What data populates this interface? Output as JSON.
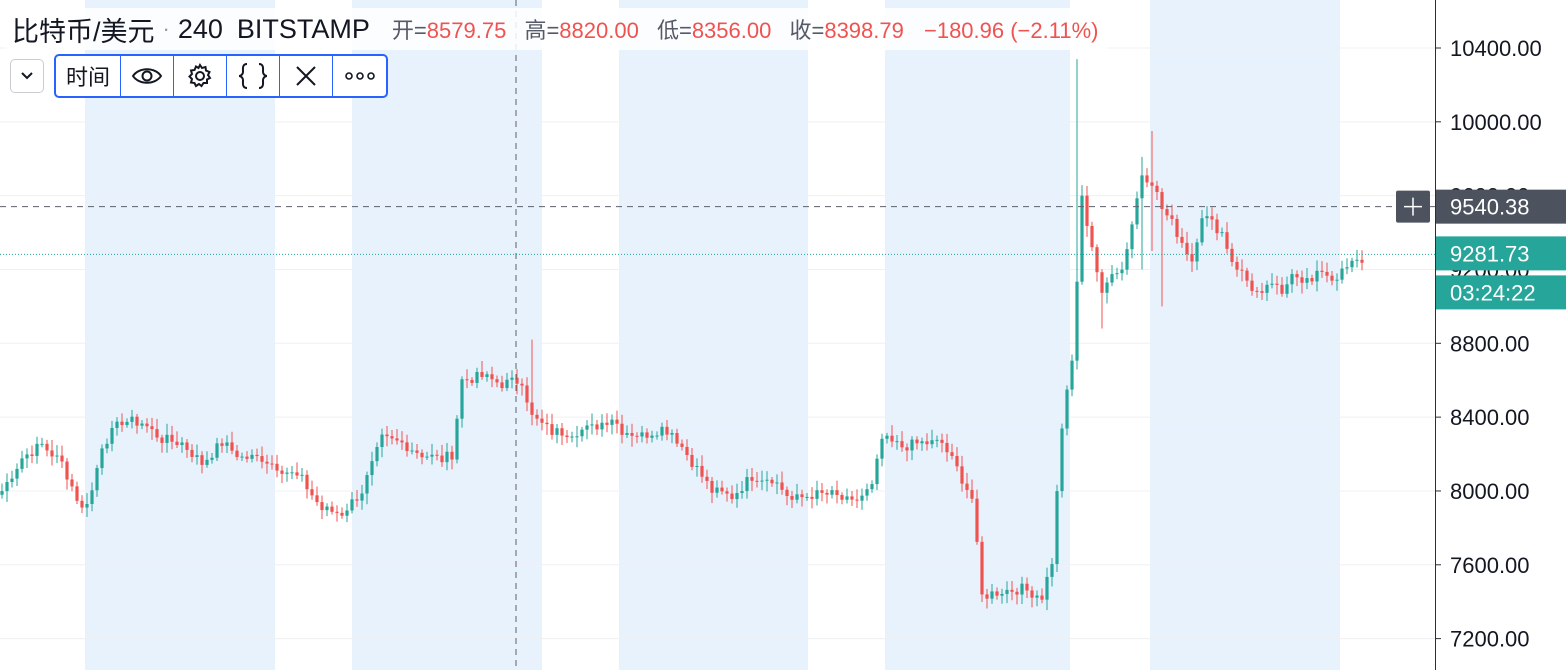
{
  "header": {
    "symbol": "比特币/美元",
    "interval": "240",
    "exchange": "BITSTAMP",
    "open_label": "开=",
    "open_value": "8579.75",
    "high_label": "高=",
    "high_value": "8820.00",
    "low_label": "低=",
    "low_value": "8356.00",
    "close_label": "收=",
    "close_value": "8398.79",
    "change": "−180.96 (−2.11%)"
  },
  "toolbar": {
    "time_label": "时间",
    "icons": [
      "chevron-down-icon",
      "eye-icon",
      "gear-icon",
      "braces-icon",
      "close-icon",
      "more-icon"
    ]
  },
  "price_axis": {
    "crosshair_price": "9540.38",
    "last_price": "9281.73",
    "countdown": "03:24:22"
  },
  "colors": {
    "up": "#26a69a",
    "down": "#ef5350",
    "session_highlight": "#e8f2fd",
    "price_tag_last": "#26a69a",
    "crosshair_tag": "#4c525e",
    "accent": "#2962ff"
  },
  "chart_data": {
    "type": "candlestick",
    "y_ticks": [
      "7200.00",
      "7600.00",
      "8000.00",
      "8400.00",
      "8800.00",
      "9200.00",
      "9600.00",
      "10000.00",
      "10400.00"
    ],
    "ylim": [
      7030,
      10660
    ],
    "grid": true,
    "crosshair": {
      "price": 9540.38,
      "candle_index": 136
    },
    "anchors": [
      [
        0,
        8000
      ],
      [
        4,
        8180
      ],
      [
        8,
        8250
      ],
      [
        12,
        8150
      ],
      [
        16,
        7900
      ],
      [
        18,
        8000
      ],
      [
        20,
        8250
      ],
      [
        24,
        8380
      ],
      [
        28,
        8370
      ],
      [
        32,
        8280
      ],
      [
        36,
        8260
      ],
      [
        40,
        8150
      ],
      [
        44,
        8260
      ],
      [
        48,
        8180
      ],
      [
        52,
        8180
      ],
      [
        56,
        8120
      ],
      [
        60,
        8060
      ],
      [
        64,
        7900
      ],
      [
        68,
        7880
      ],
      [
        72,
        8000
      ],
      [
        76,
        8280
      ],
      [
        80,
        8260
      ],
      [
        84,
        8200
      ],
      [
        88,
        8170
      ],
      [
        90,
        8200
      ],
      [
        92,
        8600
      ],
      [
        96,
        8620
      ],
      [
        100,
        8580
      ],
      [
        104,
        8600
      ],
      [
        106,
        8400
      ],
      [
        110,
        8320
      ],
      [
        114,
        8320
      ],
      [
        118,
        8340
      ],
      [
        122,
        8400
      ],
      [
        124,
        8330
      ],
      [
        128,
        8300
      ],
      [
        132,
        8340
      ],
      [
        134,
        8320
      ],
      [
        138,
        8160
      ],
      [
        142,
        8000
      ],
      [
        146,
        7970
      ],
      [
        150,
        8080
      ],
      [
        154,
        8070
      ],
      [
        158,
        7950
      ],
      [
        162,
        7980
      ],
      [
        166,
        7980
      ],
      [
        170,
        7930
      ],
      [
        174,
        8020
      ],
      [
        176,
        8280
      ],
      [
        180,
        8240
      ],
      [
        184,
        8260
      ],
      [
        188,
        8260
      ],
      [
        191,
        8120
      ],
      [
        194,
        7960
      ],
      [
        196,
        7430
      ],
      [
        200,
        7460
      ],
      [
        204,
        7470
      ],
      [
        208,
        7430
      ],
      [
        210,
        7620
      ],
      [
        212,
        8350
      ],
      [
        214,
        8700
      ],
      [
        216,
        9580
      ],
      [
        218,
        9330
      ],
      [
        220,
        9050
      ],
      [
        222,
        9200
      ],
      [
        224,
        9200
      ],
      [
        226,
        9450
      ],
      [
        228,
        9720
      ],
      [
        230,
        9680
      ],
      [
        232,
        9530
      ],
      [
        234,
        9450
      ],
      [
        236,
        9350
      ],
      [
        238,
        9250
      ],
      [
        240,
        9500
      ],
      [
        242,
        9450
      ],
      [
        244,
        9400
      ],
      [
        246,
        9250
      ],
      [
        248,
        9180
      ],
      [
        250,
        9100
      ],
      [
        252,
        9050
      ],
      [
        254,
        9130
      ],
      [
        256,
        9050
      ],
      [
        258,
        9200
      ],
      [
        260,
        9150
      ],
      [
        262,
        9130
      ],
      [
        264,
        9200
      ],
      [
        266,
        9150
      ],
      [
        268,
        9180
      ],
      [
        270,
        9230
      ],
      [
        272,
        9250
      ]
    ],
    "spikes": [
      [
        106,
        8820,
        8356
      ],
      [
        215,
        10340,
        8800
      ],
      [
        228,
        9810,
        9200
      ],
      [
        230,
        9950,
        9300
      ],
      [
        220,
        9200,
        8880
      ],
      [
        232,
        9420,
        9000
      ]
    ],
    "last_price": 9281.73
  }
}
